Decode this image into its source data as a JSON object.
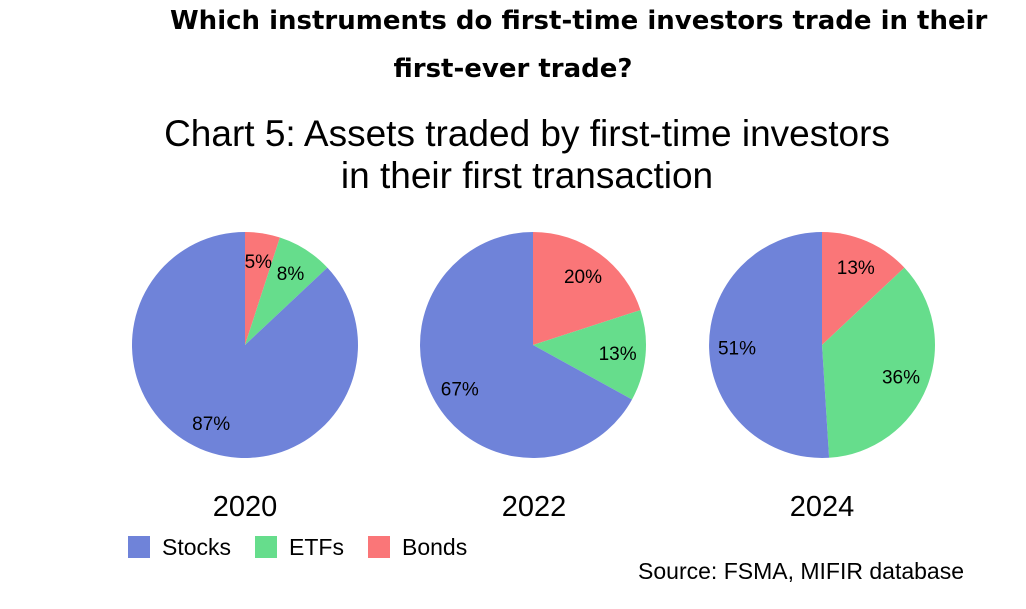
{
  "header": {
    "headline_line1": "Which instruments do first-time investors trade in their",
    "headline_line2": "first-ever trade?"
  },
  "chart_data": {
    "type": "pie",
    "title_line1": "Chart 5: Assets traded by first-time investors",
    "title_line2": "in their first transaction",
    "categories": [
      "Stocks",
      "ETFs",
      "Bonds"
    ],
    "colors": {
      "Stocks": "#6f83d9",
      "ETFs": "#66dd8c",
      "Bonds": "#fa7678"
    },
    "pies": [
      {
        "year": "2020",
        "slices": [
          {
            "category": "Bonds",
            "value": 5,
            "label": "5%"
          },
          {
            "category": "ETFs",
            "value": 8,
            "label": "8%"
          },
          {
            "category": "Stocks",
            "value": 87,
            "label": "87%"
          }
        ]
      },
      {
        "year": "2022",
        "slices": [
          {
            "category": "Bonds",
            "value": 20,
            "label": "20%"
          },
          {
            "category": "ETFs",
            "value": 13,
            "label": "13%"
          },
          {
            "category": "Stocks",
            "value": 67,
            "label": "67%"
          }
        ]
      },
      {
        "year": "2024",
        "slices": [
          {
            "category": "Bonds",
            "value": 13,
            "label": "13%"
          },
          {
            "category": "ETFs",
            "value": 36,
            "label": "36%"
          },
          {
            "category": "Stocks",
            "value": 51,
            "label": "51%"
          }
        ]
      }
    ],
    "legend": {
      "items": [
        "Stocks",
        "ETFs",
        "Bonds"
      ],
      "placement": "bottom-left"
    },
    "source": "Source: FSMA, MIFIR database"
  }
}
